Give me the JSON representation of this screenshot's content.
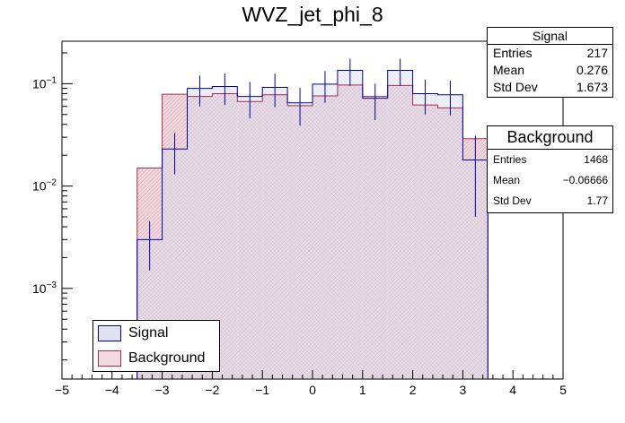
{
  "chart_data": {
    "type": "histogram",
    "title": "WVZ_jet_phi_8",
    "x_range": [
      -5,
      5
    ],
    "y_scale": "log",
    "y_range": [
      0.00013,
      0.26
    ],
    "x_ticks": [
      "−5",
      "−4",
      "−3",
      "−2",
      "−1",
      "0",
      "1",
      "2",
      "3",
      "4",
      "5"
    ],
    "y_ticks": [
      {
        "value": 0.1,
        "base": "10",
        "exp": "−1"
      },
      {
        "value": 0.01,
        "base": "10",
        "exp": "−2"
      },
      {
        "value": 0.001,
        "base": "10",
        "exp": "−3"
      }
    ],
    "bin_edges": [
      -3.5,
      -3.0,
      -2.5,
      -2.0,
      -1.5,
      -1.0,
      -0.5,
      0.0,
      0.5,
      1.0,
      1.5,
      2.0,
      2.5,
      3.0,
      3.5
    ],
    "series": [
      {
        "name": "Signal",
        "color": "#0000aa",
        "fill": "#dfe4f0",
        "values": [
          0.003,
          0.023,
          0.09,
          0.094,
          0.075,
          0.092,
          0.065,
          0.099,
          0.135,
          0.072,
          0.135,
          0.08,
          0.078,
          0.018
        ],
        "errors": [
          0.0015,
          0.01,
          0.03,
          0.032,
          0.029,
          0.033,
          0.026,
          0.034,
          0.04,
          0.028,
          0.04,
          0.03,
          0.029,
          0.013
        ]
      },
      {
        "name": "Background",
        "color": "#aa2b4a",
        "fill": "#f0dadf",
        "values": [
          0.015,
          0.079,
          0.075,
          0.08,
          0.067,
          0.078,
          0.061,
          0.076,
          0.097,
          0.075,
          0.096,
          0.062,
          0.058,
          0.029
        ]
      }
    ],
    "stats_boxes": [
      {
        "title": "Signal",
        "rows": [
          [
            "Entries",
            "217"
          ],
          [
            "Mean",
            "0.276"
          ],
          [
            "Std Dev",
            "1.673"
          ]
        ]
      },
      {
        "title": "Background",
        "rows": [
          [
            "Entries",
            "1468"
          ],
          [
            "Mean",
            "−0.06666"
          ],
          [
            "Std Dev",
            "1.77"
          ]
        ]
      }
    ],
    "legend": {
      "position": "bottom-left",
      "entries": [
        "Signal",
        "Background"
      ]
    }
  }
}
